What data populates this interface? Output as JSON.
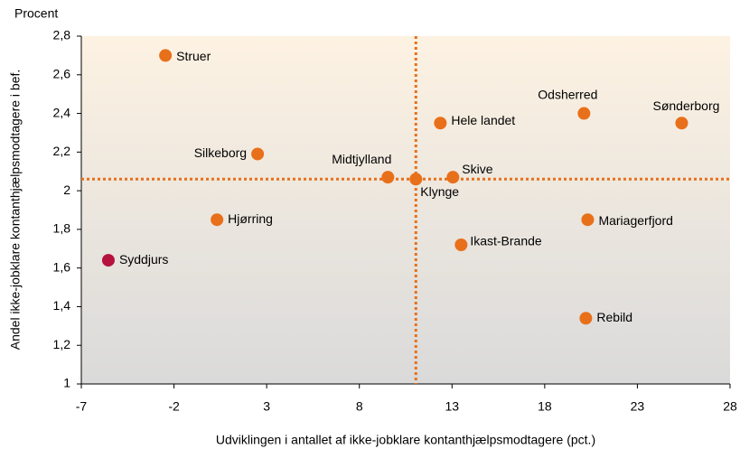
{
  "chart_data": {
    "type": "scatter",
    "y_unit_label": "Procent",
    "xlabel": "Udviklingen i antallet af ikke-jobklare kontanthjælpsmodtagere (pct.)",
    "ylabel": "Andel ikke-jobklare kontanthjælpsmodtagere i bef.",
    "labels": [
      "Struer",
      "Silkeborg",
      "Hjørring",
      "Syddjurs",
      "Midtjylland",
      "Klynge",
      "Skive",
      "Hele landet",
      "Ikast-Brande",
      "Odsherred",
      "Mariagerfjord",
      "Rebild",
      "Sønderborg"
    ],
    "x": [
      -2.46,
      2.51,
      0.32,
      -5.54,
      9.54,
      11.05,
      13.05,
      12.37,
      13.49,
      20.12,
      20.32,
      20.22,
      25.39
    ],
    "values": [
      2.7,
      2.19,
      1.85,
      1.64,
      2.07,
      2.06,
      2.07,
      2.35,
      1.72,
      2.4,
      1.85,
      1.34,
      2.35
    ],
    "colors": [
      "#e8701a",
      "#e8701a",
      "#e8701a",
      "#b5123e",
      "#e8701a",
      "#e8701a",
      "#e8701a",
      "#e8701a",
      "#e8701a",
      "#e8701a",
      "#e8701a",
      "#e8701a",
      "#e8701a"
    ],
    "reference_lines": {
      "x": 11.05,
      "y": 2.06,
      "color": "#e8701a"
    },
    "xlim": [
      -7,
      28
    ],
    "xticks": [
      -7,
      -2,
      3,
      8,
      13,
      18,
      23,
      28
    ],
    "ylim": [
      1,
      2.8
    ],
    "yticks": [
      1,
      {
        "value": 1.2,
        "label": "1,2"
      },
      {
        "value": 1.4,
        "label": "1,4"
      },
      {
        "value": 1.6,
        "label": "1,6"
      },
      {
        "value": 1.8,
        "label": "1,8"
      },
      2,
      {
        "value": 2.2,
        "label": "2,2"
      },
      {
        "value": 2.4,
        "label": "2,4"
      },
      {
        "value": 2.6,
        "label": "2,6"
      },
      {
        "value": 2.8,
        "label": "2,8"
      }
    ]
  }
}
